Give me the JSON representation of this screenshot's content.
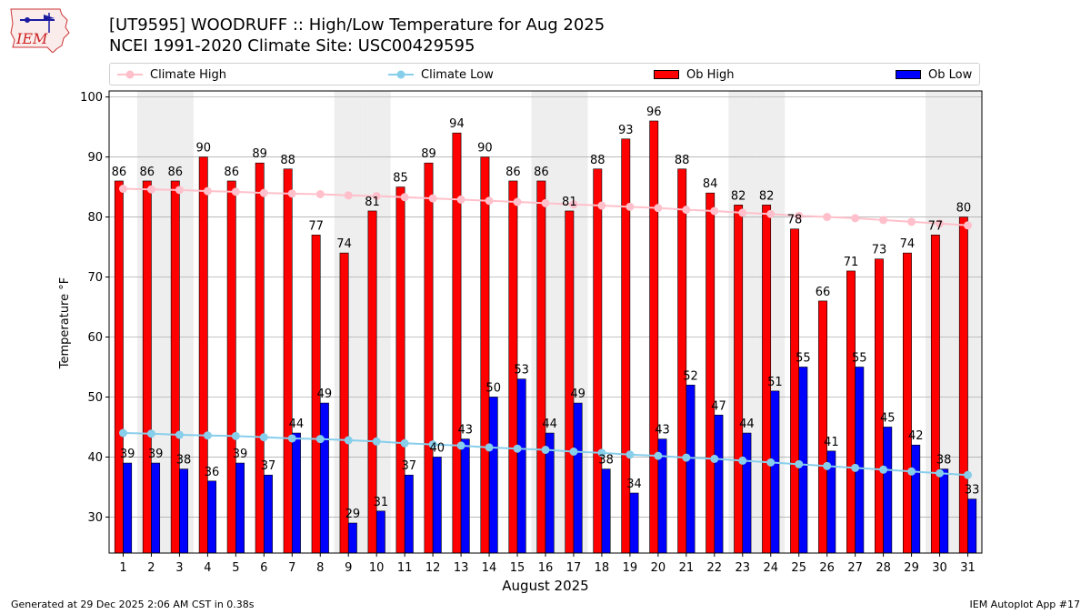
{
  "header": {
    "logo_text": "IEM",
    "title_line1": "[UT9595] WOODRUFF :: High/Low Temperature for Aug 2025",
    "title_line2": "NCEI 1991-2020 Climate Site: USC00429595"
  },
  "legend": {
    "climate_high": "Climate High",
    "climate_low": "Climate Low",
    "ob_high": "Ob High",
    "ob_low": "Ob Low"
  },
  "colors": {
    "ob_high": "#ff0000",
    "ob_low": "#0000ff",
    "climate_high": "#ffc0cb",
    "climate_low": "#87ceeb",
    "weekend_band": "#eeeeee",
    "grid": "#b0b0b0"
  },
  "chart_data": {
    "type": "bar",
    "xlabel": "August 2025",
    "ylabel": "Temperature °F",
    "ylim": [
      24,
      101
    ],
    "yticks": [
      30,
      40,
      50,
      60,
      70,
      80,
      90,
      100
    ],
    "grid": true,
    "legend_position": "top",
    "categories": [
      "1",
      "2",
      "3",
      "4",
      "5",
      "6",
      "7",
      "8",
      "9",
      "10",
      "11",
      "12",
      "13",
      "14",
      "15",
      "16",
      "17",
      "18",
      "19",
      "20",
      "21",
      "22",
      "23",
      "24",
      "25",
      "26",
      "27",
      "28",
      "29",
      "30",
      "31"
    ],
    "shaded_days": [
      2,
      3,
      9,
      10,
      16,
      17,
      23,
      24,
      30,
      31
    ],
    "series": [
      {
        "name": "Ob High",
        "kind": "bar",
        "values": [
          86,
          86,
          86,
          90,
          86,
          89,
          88,
          77,
          74,
          81,
          85,
          89,
          94,
          90,
          86,
          86,
          81,
          88,
          93,
          96,
          88,
          84,
          82,
          82,
          78,
          66,
          71,
          73,
          74,
          77,
          80
        ]
      },
      {
        "name": "Ob Low",
        "kind": "bar",
        "values": [
          39,
          39,
          38,
          36,
          39,
          37,
          44,
          49,
          29,
          31,
          37,
          40,
          43,
          50,
          53,
          44,
          49,
          38,
          34,
          43,
          52,
          47,
          44,
          51,
          55,
          41,
          55,
          45,
          42,
          38,
          33
        ]
      },
      {
        "name": "Climate High",
        "kind": "line",
        "values": [
          84.7,
          84.6,
          84.5,
          84.3,
          84.2,
          84.0,
          83.9,
          83.8,
          83.6,
          83.5,
          83.3,
          83.1,
          82.9,
          82.7,
          82.5,
          82.3,
          82.1,
          81.9,
          81.7,
          81.5,
          81.2,
          81.0,
          80.7,
          80.5,
          80.2,
          80.0,
          79.8,
          79.5,
          79.2,
          78.9,
          78.6
        ]
      },
      {
        "name": "Climate Low",
        "kind": "line",
        "values": [
          44.0,
          43.9,
          43.7,
          43.6,
          43.5,
          43.3,
          43.1,
          43.0,
          42.8,
          42.6,
          42.3,
          42.1,
          41.9,
          41.6,
          41.4,
          41.2,
          40.9,
          40.7,
          40.4,
          40.2,
          39.9,
          39.7,
          39.4,
          39.1,
          38.8,
          38.5,
          38.2,
          37.9,
          37.6,
          37.3,
          37.0
        ]
      }
    ]
  },
  "footer": {
    "left": "Generated at 29 Dec 2025 2:06 AM CST in 0.38s",
    "right": "IEM Autoplot App #17"
  }
}
